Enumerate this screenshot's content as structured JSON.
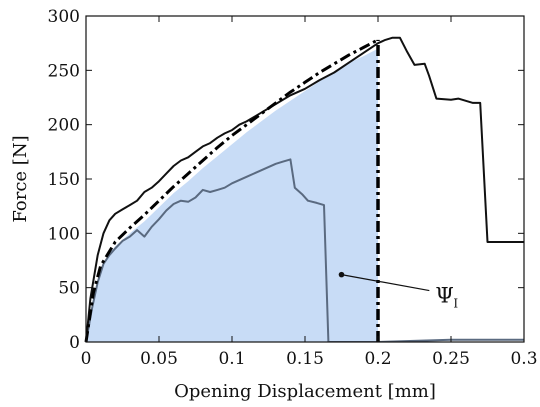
{
  "chart_data": {
    "type": "line",
    "title": "",
    "xlabel": "Opening Displacement [mm]",
    "ylabel": "Force [N]",
    "xlim": [
      0,
      0.3
    ],
    "ylim": [
      0,
      300
    ],
    "xticks": [
      {
        "value": 0,
        "label": "0"
      },
      {
        "value": 0.05,
        "label": "0.05"
      },
      {
        "value": 0.1,
        "label": "0.1"
      },
      {
        "value": 0.15,
        "label": "0.15"
      },
      {
        "value": 0.2,
        "label": "0.2"
      },
      {
        "value": 0.25,
        "label": "0.25"
      },
      {
        "value": 0.3,
        "label": "0.3"
      }
    ],
    "yticks": [
      {
        "value": 0,
        "label": "0"
      },
      {
        "value": 50,
        "label": "50"
      },
      {
        "value": 100,
        "label": "100"
      },
      {
        "value": 150,
        "label": "150"
      },
      {
        "value": 200,
        "label": "200"
      },
      {
        "value": 250,
        "label": "250"
      },
      {
        "value": 300,
        "label": "300"
      }
    ],
    "grid": false,
    "legend": "none",
    "colors": {
      "fill": "#c8dcf6",
      "upper_curve": "#111111",
      "lower_curve": "#5a6a80",
      "dashdot": "#000000",
      "cutoff": "#000000"
    },
    "series": [
      {
        "style": "fill",
        "x": [
          0,
          0.005,
          0.01,
          0.015,
          0.02,
          0.03,
          0.04,
          0.05,
          0.06,
          0.07,
          0.08,
          0.09,
          0.1,
          0.11,
          0.12,
          0.13,
          0.14,
          0.15,
          0.16,
          0.17,
          0.18,
          0.19,
          0.2,
          0.2,
          0
        ],
        "y": [
          0,
          42,
          65,
          80,
          88,
          100,
          111,
          124,
          137,
          148,
          160,
          171,
          182,
          193,
          203,
          213,
          222,
          231,
          240,
          249,
          257,
          263,
          270,
          0,
          0
        ]
      },
      {
        "style": "solid-black",
        "x": [
          0,
          0.003,
          0.008,
          0.012,
          0.016,
          0.02,
          0.025,
          0.03,
          0.035,
          0.04,
          0.045,
          0.05,
          0.055,
          0.06,
          0.065,
          0.07,
          0.075,
          0.08,
          0.085,
          0.09,
          0.095,
          0.1,
          0.105,
          0.11,
          0.12,
          0.13,
          0.14,
          0.15,
          0.16,
          0.17,
          0.18,
          0.19,
          0.2,
          0.205,
          0.21,
          0.215,
          0.22,
          0.225,
          0.232,
          0.235,
          0.24,
          0.25,
          0.255,
          0.265,
          0.27,
          0.275,
          0.28,
          0.29,
          0.3
        ],
        "y": [
          0,
          40,
          80,
          100,
          112,
          118,
          122,
          126,
          130,
          138,
          142,
          148,
          155,
          162,
          167,
          170,
          175,
          180,
          183,
          188,
          192,
          195,
          200,
          203,
          211,
          219,
          227,
          233,
          241,
          248,
          257,
          266,
          275,
          278,
          280,
          280,
          267,
          255,
          256,
          245,
          224,
          223,
          224,
          220,
          220,
          92,
          92,
          92,
          92
        ]
      },
      {
        "style": "solid-gray",
        "x": [
          0,
          0.004,
          0.008,
          0.012,
          0.016,
          0.02,
          0.025,
          0.03,
          0.035,
          0.04,
          0.045,
          0.05,
          0.055,
          0.06,
          0.065,
          0.07,
          0.075,
          0.08,
          0.085,
          0.09,
          0.095,
          0.1,
          0.11,
          0.12,
          0.13,
          0.135,
          0.14,
          0.143,
          0.148,
          0.152,
          0.158,
          0.163,
          0.166,
          0.17,
          0.2,
          0.25,
          0.3
        ],
        "y": [
          0,
          30,
          55,
          72,
          80,
          86,
          93,
          97,
          103,
          97,
          106,
          113,
          121,
          127,
          130,
          129,
          133,
          140,
          138,
          140,
          142,
          146,
          152,
          158,
          164,
          166,
          168,
          142,
          136,
          130,
          128,
          126,
          0,
          0,
          0,
          2,
          2
        ]
      },
      {
        "style": "dash-dot",
        "x": [
          0,
          0.005,
          0.01,
          0.02,
          0.03,
          0.04,
          0.05,
          0.06,
          0.07,
          0.08,
          0.09,
          0.1,
          0.11,
          0.12,
          0.13,
          0.14,
          0.15,
          0.16,
          0.17,
          0.18,
          0.19,
          0.2
        ],
        "y": [
          0,
          45,
          70,
          92,
          105,
          117,
          130,
          143,
          155,
          167,
          179,
          190,
          200,
          210,
          220,
          230,
          239,
          248,
          256,
          264,
          271,
          278
        ]
      },
      {
        "style": "cutoff-dashdot",
        "x": [
          0.2,
          0.2
        ],
        "y": [
          0,
          278
        ]
      }
    ],
    "annotations": [
      {
        "text": "Ψ",
        "subscript": "I",
        "point_x": 0.175,
        "point_y": 62,
        "label_x": 0.242,
        "label_y": 40
      }
    ]
  }
}
